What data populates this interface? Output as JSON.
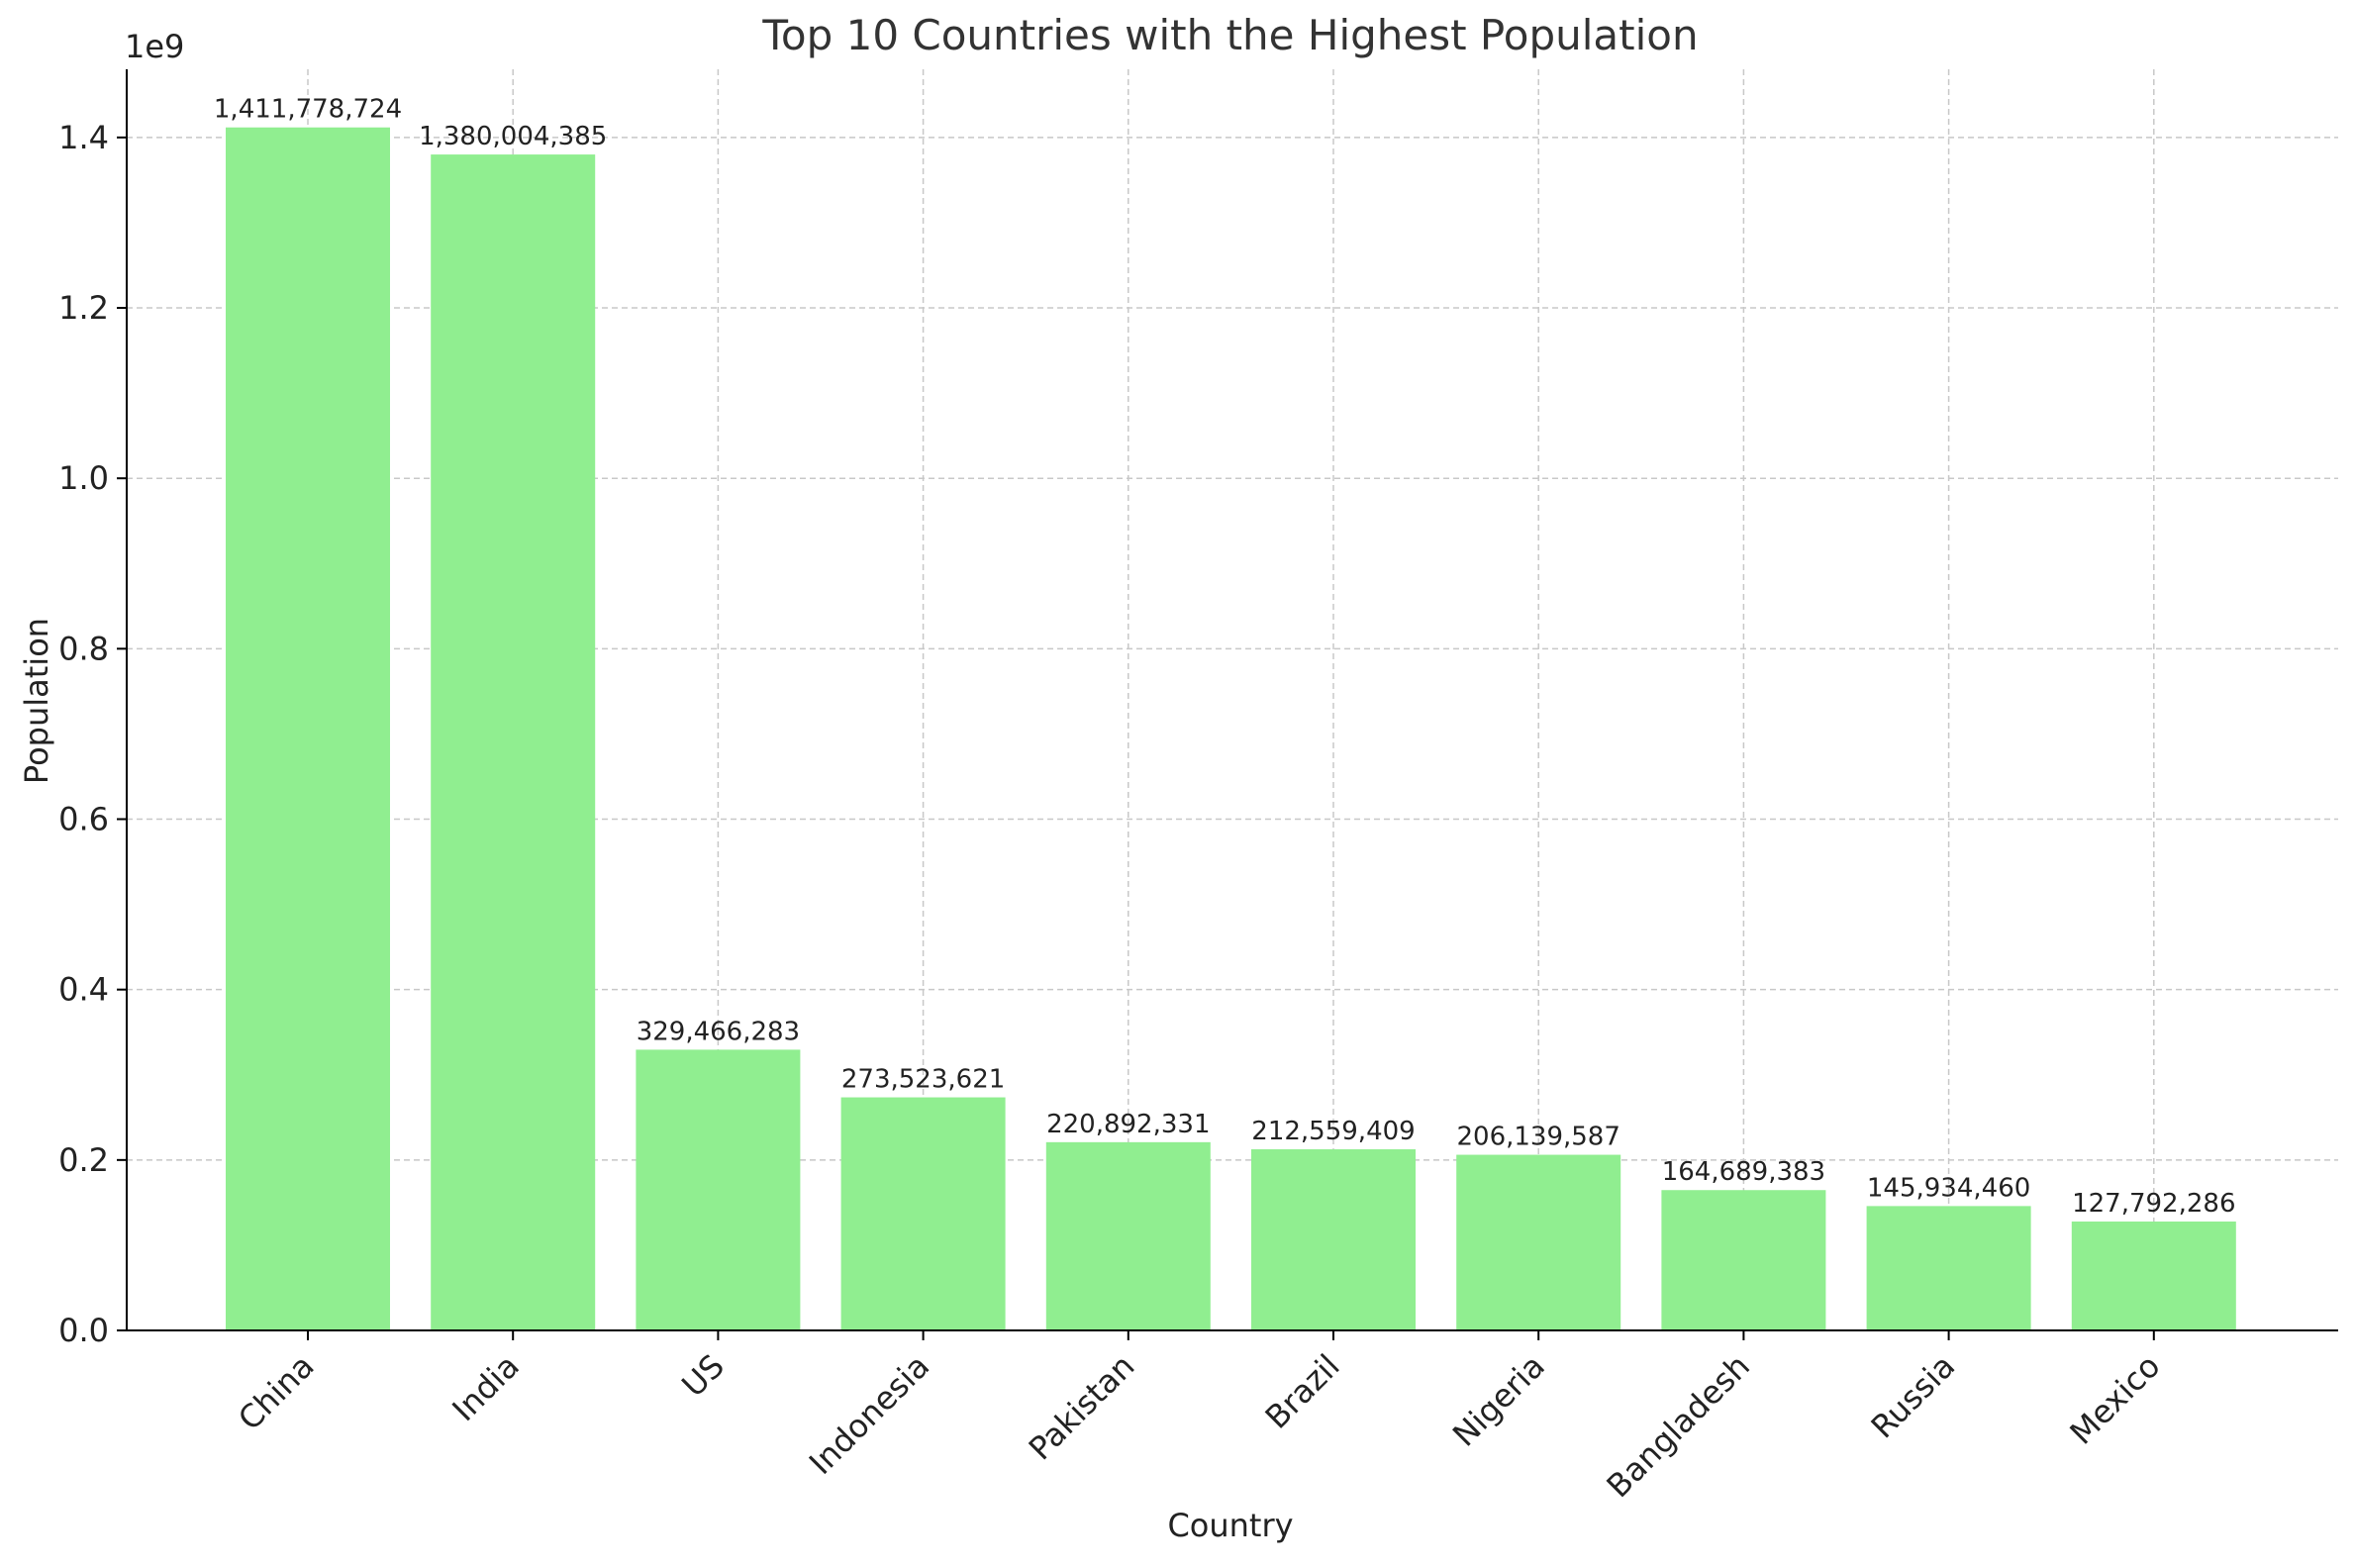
{
  "chart_data": {
    "type": "bar",
    "title": "Top 10 Countries with the Highest Population",
    "xlabel": "Country",
    "ylabel": "Population",
    "y_offset_label": "1e9",
    "ylim": [
      0,
      1480000000
    ],
    "yticks": [
      0,
      200000000,
      400000000,
      600000000,
      800000000,
      1000000000,
      1200000000,
      1400000000
    ],
    "ytick_labels": [
      "0.0",
      "0.2",
      "0.4",
      "0.6",
      "0.8",
      "1.0",
      "1.2",
      "1.4"
    ],
    "grid": true,
    "bar_color": "#90ee90",
    "categories": [
      "China",
      "India",
      "US",
      "Indonesia",
      "Pakistan",
      "Brazil",
      "Nigeria",
      "Bangladesh",
      "Russia",
      "Mexico"
    ],
    "values": [
      1411778724,
      1380004385,
      329466283,
      273523621,
      220892331,
      212559409,
      206139587,
      164689383,
      145934460,
      127792286
    ],
    "value_labels": [
      "1,411,778,724",
      "1,380,004,385",
      "329,466,283",
      "273,523,621",
      "220,892,331",
      "212,559,409",
      "206,139,587",
      "164,689,383",
      "145,934,460",
      "127,792,286"
    ]
  }
}
